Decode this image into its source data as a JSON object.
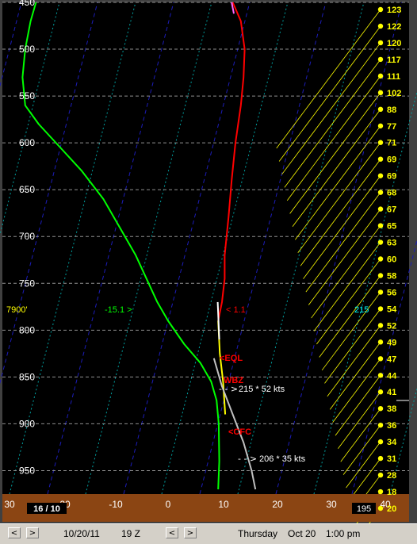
{
  "chart_data": {
    "type": "line",
    "title": "",
    "xlabel": "",
    "ylabel": "",
    "x_ticks": [
      "30",
      "-20",
      "-10",
      "0",
      "10",
      "20",
      "30",
      "40"
    ],
    "y_ticks": [
      "450",
      "500",
      "550",
      "600",
      "650",
      "700",
      "750",
      "800",
      "850",
      "900",
      "950"
    ],
    "xlim": [
      -30,
      45
    ],
    "ylim": [
      450,
      975
    ],
    "series": [
      {
        "color": "#00ff00",
        "points": [
          [
            -24.5,
            450
          ],
          [
            -25.5,
            470
          ],
          [
            -26.5,
            500
          ],
          [
            -27,
            530
          ],
          [
            -26.5,
            560
          ],
          [
            -24,
            580
          ],
          [
            -20,
            605
          ],
          [
            -16,
            630
          ],
          [
            -12,
            660
          ],
          [
            -9,
            690
          ],
          [
            -6,
            720
          ],
          [
            -4,
            745
          ],
          [
            -2,
            770
          ],
          [
            0,
            790
          ],
          [
            3,
            815
          ],
          [
            6,
            835
          ],
          [
            8,
            855
          ],
          [
            9,
            875
          ],
          [
            9.4,
            900
          ],
          [
            9.5,
            940
          ],
          [
            9.3,
            970
          ]
        ]
      },
      {
        "color": "#ff0000",
        "points": [
          [
            12,
            450
          ],
          [
            13.5,
            470
          ],
          [
            14.2,
            500
          ],
          [
            14,
            530
          ],
          [
            13.5,
            560
          ],
          [
            12.5,
            600
          ],
          [
            11.8,
            640
          ],
          [
            11.2,
            680
          ],
          [
            10.5,
            720
          ],
          [
            10.5,
            745
          ],
          [
            10,
            770
          ],
          [
            9.3,
            790
          ]
        ]
      },
      {
        "color": "#ff66ff",
        "points": [
          [
            11.8,
            450
          ],
          [
            12.2,
            462
          ]
        ]
      },
      {
        "color": "#ffff00",
        "points": [
          [
            9.3,
            790
          ],
          [
            9.6,
            825
          ],
          [
            10.2,
            855
          ],
          [
            10.6,
            890
          ]
        ]
      },
      {
        "color": "#ffffff",
        "points": [
          [
            9.2,
            770
          ],
          [
            9.5,
            810
          ]
        ]
      },
      {
        "color": "#c0c0c0",
        "points": [
          [
            8.5,
            830
          ],
          [
            10,
            860
          ],
          [
            12,
            890
          ],
          [
            14,
            920
          ],
          [
            15.5,
            950
          ],
          [
            16.2,
            970
          ]
        ]
      }
    ],
    "wind_speeds": [
      "123",
      "122",
      "120",
      "117",
      "111",
      "102",
      "88",
      "77",
      "71",
      "69",
      "69",
      "68",
      "67",
      "65",
      "63",
      "60",
      "58",
      "56",
      "54",
      "52",
      "49",
      "47",
      "44",
      "41",
      "38",
      "36",
      "34",
      "31",
      "28",
      "18",
      "20"
    ],
    "annotations": {
      "height_label": "7900'",
      "temp_label": "-15.1 >",
      "dewpoint_label": "< 1.1",
      "direction_label": "215",
      "eql_label": "<EQL",
      "wbz_label": "WBZ",
      "cfc_label": "<CFC",
      "wind_upper": "215 * 52 kts",
      "wind_lower": "206 * 35 kts",
      "bottom_left": "16 / 10",
      "bottom_right": "195"
    }
  },
  "status_bar": {
    "prev_label": "<",
    "next_label": ">",
    "date": "10/20/11",
    "hour": "19 Z",
    "prev2_label": "<",
    "next2_label": ">",
    "day": "Thursday",
    "date_long": "Oct 20",
    "local_time": "1:00 pm"
  }
}
